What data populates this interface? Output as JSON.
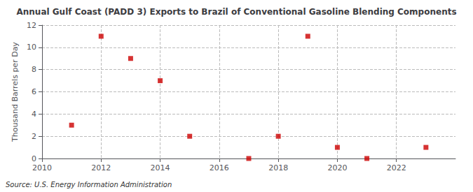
{
  "chart_data": {
    "type": "scatter",
    "title": "Annual Gulf Coast (PADD 3) Exports to Brazil of Conventional Gasoline Blending Components",
    "ylabel": "Thousand Barrels per Day",
    "annotations": [
      "Source: U.S. Energy Information Administration"
    ],
    "x": [
      2011,
      2012,
      2013,
      2014,
      2015,
      2017,
      2018,
      2019,
      2020,
      2021,
      2023
    ],
    "values": [
      3,
      11,
      9,
      7,
      2,
      0,
      2,
      11,
      1,
      0,
      1
    ],
    "color": "#cc0000",
    "marker": "square",
    "xlim": [
      2010,
      2024
    ],
    "ylim": [
      0,
      12
    ],
    "xticks": [
      2010,
      2012,
      2014,
      2016,
      2018,
      2020,
      2022
    ],
    "yticks": [
      0,
      2,
      4,
      6,
      8,
      10,
      12
    ],
    "grid": true
  }
}
